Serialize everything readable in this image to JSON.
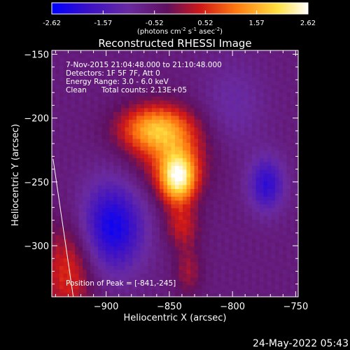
{
  "colorbar": {
    "ticks": [
      "-2.62",
      "-1.57",
      "-0.52",
      "0.52",
      "1.57",
      "2.62"
    ],
    "range": [
      -2.62,
      2.62
    ],
    "units_label": "(photons cm",
    "units_sup1": "-2",
    "units_mid1": " s",
    "units_sup2": "-1",
    "units_mid2": " asec",
    "units_sup3": "-2",
    "units_end": ")"
  },
  "chart_data": {
    "type": "heatmap",
    "title": "Reconstructed RHESSI Image",
    "xlabel": "Heliocentric X (arcsec)",
    "ylabel": "Heliocentric Y (arcsec)",
    "xlim": [
      -943,
      -748
    ],
    "ylim": [
      -340,
      -147
    ],
    "x_ticks": [
      {
        "value": -900,
        "label": "−900"
      },
      {
        "value": -850,
        "label": "−850"
      },
      {
        "value": -800,
        "label": "−800"
      },
      {
        "value": -750,
        "label": "−750"
      }
    ],
    "y_ticks": [
      {
        "value": -150,
        "label": "−150"
      },
      {
        "value": -200,
        "label": "−200"
      },
      {
        "value": -250,
        "label": "−250"
      },
      {
        "value": -300,
        "label": "−300"
      }
    ],
    "peak": [
      -841,
      -245
    ],
    "colormap": [
      "#0000ff",
      "#3a10c8",
      "#6a2aa0",
      "#601060",
      "#d01818",
      "#ff7a10",
      "#ffe040",
      "#ffffff"
    ],
    "components": [
      {
        "x": -843,
        "y": -247,
        "sigma_x": 10,
        "sigma_y": 14,
        "amplitude": 2.6
      },
      {
        "x": -862,
        "y": -208,
        "sigma_x": 20,
        "sigma_y": 13,
        "amplitude": 1.8
      },
      {
        "x": -848,
        "y": -228,
        "sigma_x": 22,
        "sigma_y": 22,
        "amplitude": 1.1
      },
      {
        "x": -840,
        "y": -285,
        "sigma_x": 10,
        "sigma_y": 12,
        "amplitude": 0.9
      },
      {
        "x": -835,
        "y": -320,
        "sigma_x": 8,
        "sigma_y": 14,
        "amplitude": 0.7
      },
      {
        "x": -930,
        "y": -320,
        "sigma_x": 15,
        "sigma_y": 28,
        "amplitude": 1.2
      },
      {
        "x": -895,
        "y": -285,
        "sigma_x": 18,
        "sigma_y": 25,
        "amplitude": -1.8
      },
      {
        "x": -773,
        "y": -252,
        "sigma_x": 10,
        "sigma_y": 15,
        "amplitude": -1.4
      },
      {
        "x": -800,
        "y": -190,
        "sigma_x": 18,
        "sigma_y": 25,
        "amplitude": -0.5
      }
    ],
    "baseline": -0.6,
    "limb": [
      [
        -942,
        -232
      ],
      [
        -926,
        -340
      ]
    ],
    "annotations": {
      "time": "7-Nov-2015 21:04:48.000 to 21:10:48.000",
      "detectors": "Detectors: 1F 5F 7F, Att 0",
      "energy": "Energy Range: 3.0 - 6.0 keV",
      "method": "Clean",
      "counts": "Total counts: 2.13E+05",
      "peak": "Position of Peak = [-841,-245]"
    }
  },
  "timestamp": "24-May-2022 05:43"
}
